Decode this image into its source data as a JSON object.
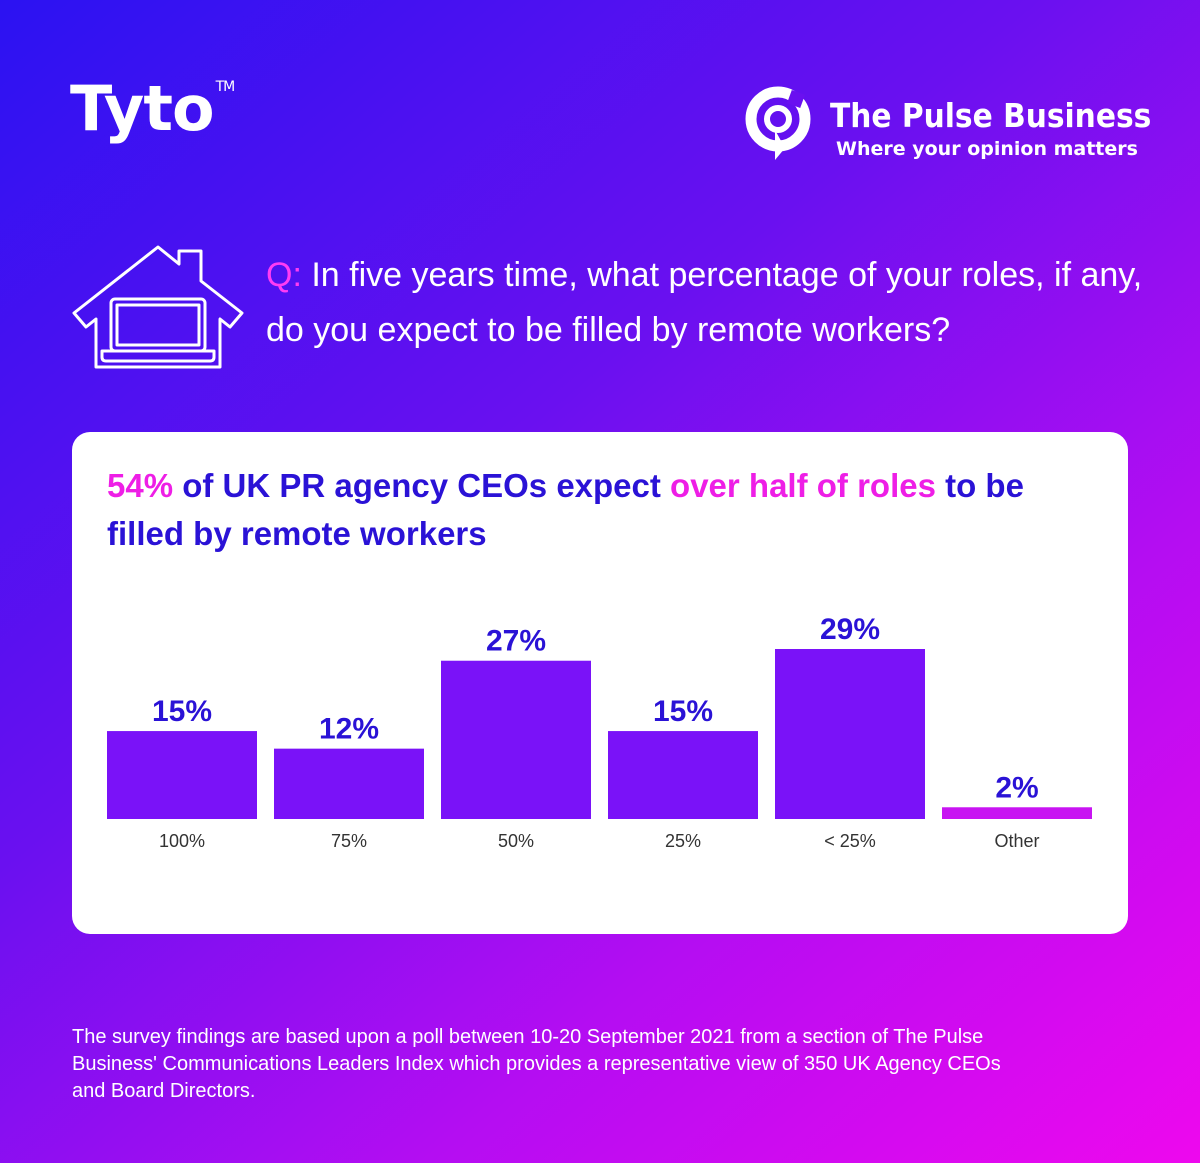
{
  "brand": {
    "tyto_name": "Tyto",
    "tyto_tm": "TM",
    "pulse_name": "The Pulse Business",
    "pulse_tagline": "Where your opinion matters"
  },
  "question": {
    "prefix": "Q:",
    "text": " In five years time, what percentage of your roles, if any, do you expect to be filled by remote workers?"
  },
  "headline": {
    "part1": "54%",
    "part2": " of UK PR agency CEOs expect ",
    "part3": "over half of roles",
    "part4": " to be filled by remote workers"
  },
  "colors": {
    "bar": "#7a12f8",
    "bar_other": "#c814f2",
    "value_text": "#2a12d6",
    "accent": "#ee1ee6"
  },
  "chart_data": {
    "type": "bar",
    "categories": [
      "100%",
      "75%",
      "50%",
      "25%",
      "< 25%",
      "Other"
    ],
    "values": [
      15,
      12,
      27,
      15,
      29,
      2
    ],
    "value_labels": [
      "15%",
      "12%",
      "27%",
      "15%",
      "29%",
      "2%"
    ],
    "ylim": [
      0,
      29
    ]
  },
  "footnote": "The survey findings are based upon a poll between 10-20 September 2021 from a section of The Pulse Business' Communications Leaders Index which provides a representative view of 350 UK Agency CEOs and Board Directors."
}
